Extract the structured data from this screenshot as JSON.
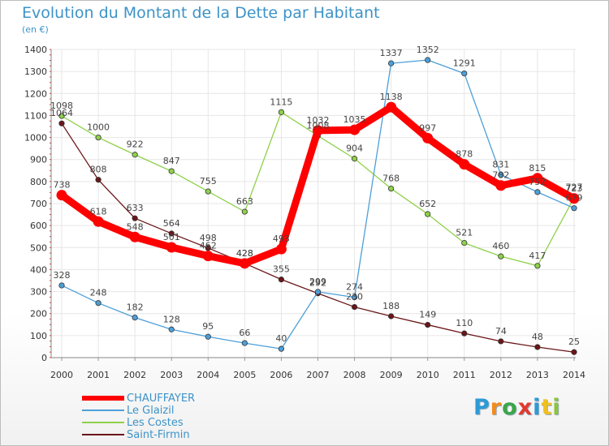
{
  "chart_data": {
    "type": "line",
    "title": "Evolution du Montant de la Dette par Habitant",
    "subtitle": "(en €)",
    "xlabel": "",
    "ylabel": "",
    "ylim": [
      0,
      1400
    ],
    "yticks": [
      0,
      100,
      200,
      300,
      400,
      500,
      600,
      700,
      800,
      900,
      1000,
      1100,
      1200,
      1300,
      1400
    ],
    "x": [
      "2000",
      "2001",
      "2002",
      "2003",
      "2004",
      "2005",
      "2006",
      "2007",
      "2008",
      "2009",
      "2010",
      "2011",
      "2012",
      "2013",
      "2014"
    ],
    "series": [
      {
        "name": "CHAUFFAYER",
        "color": "#ff0000",
        "values": [
          738,
          618,
          548,
          501,
          462,
          428,
          493,
          1032,
          1035,
          1138,
          997,
          878,
          782,
          815,
          723
        ]
      },
      {
        "name": "Le Glaizil",
        "color": "#4d9fd8",
        "values": [
          328,
          248,
          182,
          128,
          95,
          66,
          40,
          299,
          274,
          1337,
          1352,
          1291,
          831,
          752,
          679
        ]
      },
      {
        "name": "Les Costes",
        "color": "#8fd14a",
        "values": [
          1098,
          1000,
          922,
          847,
          755,
          663,
          1115,
          1008,
          904,
          768,
          652,
          521,
          460,
          417,
          727
        ]
      },
      {
        "name": "Saint-Firmin",
        "color": "#6b1518",
        "values": [
          1064,
          808,
          633,
          564,
          498,
          428,
          355,
          292,
          230,
          188,
          149,
          110,
          74,
          48,
          25
        ]
      }
    ]
  },
  "legend": [
    "CHAUFFAYER",
    "Le Glaizil",
    "Les Costes",
    "Saint-Firmin"
  ],
  "logo": {
    "text": "Proxiti",
    "letters": [
      "P",
      "r",
      "o",
      "x",
      "i",
      "t",
      "i"
    ],
    "colors": [
      "#2d9ad6",
      "#f08c1e",
      "#3aa64a",
      "#e23a2e",
      "#2d9ad6",
      "#f0c020",
      "#8cc43c"
    ]
  }
}
